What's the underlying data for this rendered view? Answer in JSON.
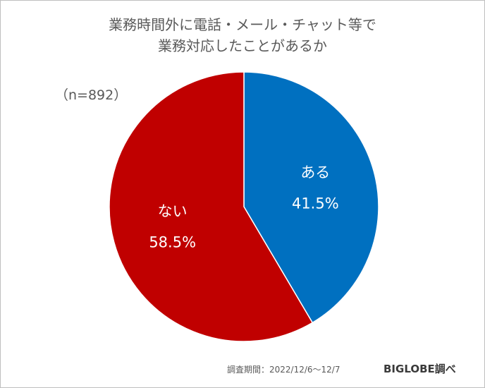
{
  "chart_data": {
    "type": "pie",
    "title": [
      "業務時間外に電話・メール・チャット等で",
      "業務対応したことがあるか"
    ],
    "sample_size": "（n=892）",
    "slices": [
      {
        "label": "ある",
        "value": 41.5,
        "value_label": "41.5%",
        "color": "#0070c0"
      },
      {
        "label": "ない",
        "value": 58.5,
        "value_label": "58.5%",
        "color": "#c00000"
      }
    ],
    "start_angle_deg": 0,
    "direction": "clockwise"
  },
  "footer": {
    "survey_period": "調査期間：2022/12/6～12/7",
    "source": "BIGLOBE調べ"
  }
}
